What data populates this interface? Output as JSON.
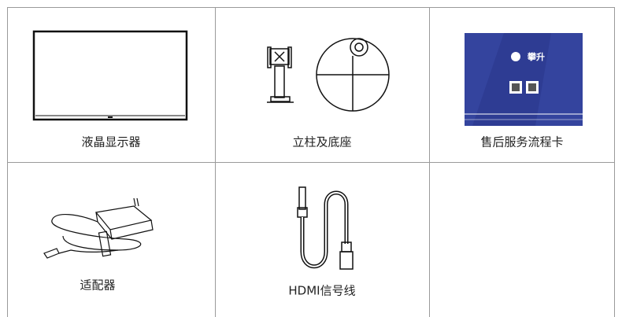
{
  "table": {
    "rows": [
      [
        {
          "label": "液晶显示器"
        },
        {
          "label": "立柱及底座"
        },
        {
          "label": "售后服务流程卡",
          "card_brand": "攀升"
        }
      ],
      [
        {
          "label": "适配器"
        },
        {
          "label": "HDMI信号线"
        },
        {}
      ]
    ]
  }
}
